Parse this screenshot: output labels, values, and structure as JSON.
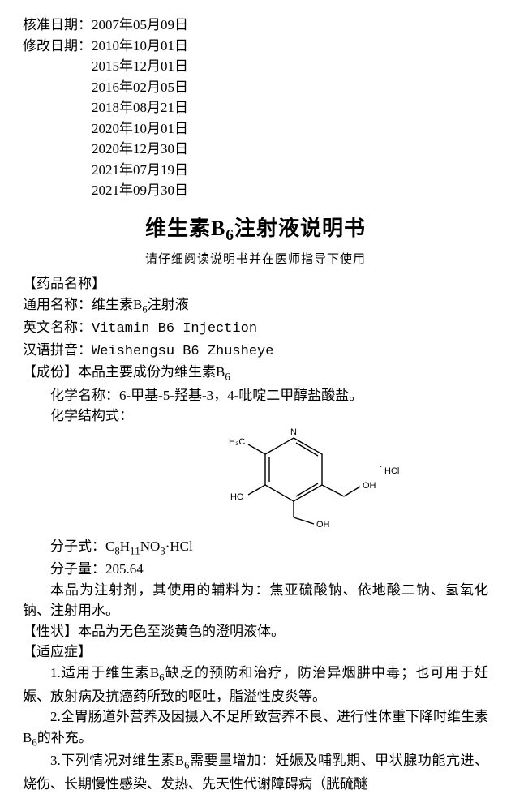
{
  "dates": {
    "approval_label": "核准日期：",
    "approval_value": "2007年05月09日",
    "revision_label": "修改日期：",
    "revisions": [
      "2010年10月01日",
      "2015年12月01日",
      "2016年02月05日",
      "2018年08月21日",
      "2020年10月01日",
      "2020年12月30日",
      "2021年07月19日",
      "2021年09月30日"
    ]
  },
  "title": {
    "main_pre": "维生素B",
    "main_sub": "6",
    "main_post": "注射液说明书",
    "subtitle": "请仔细阅读说明书并在医师指导下使用"
  },
  "sections": {
    "drug_name_header": "【药品名称】",
    "generic_label": "通用名称：",
    "generic_pre": "维生素B",
    "generic_sub": "6",
    "generic_post": "注射液",
    "english_label": "英文名称：",
    "english_value": "Vitamin B6 Injection",
    "pinyin_label": "汉语拼音：",
    "pinyin_value": "Weishengsu B6 Zhusheye",
    "ingredient_header": "【成份】",
    "ingredient_pre": "本品主要成份为维生素B",
    "ingredient_sub": "6",
    "chem_name_label": "化学名称：",
    "chem_name_value": "6-甲基-5-羟基-3，4-吡啶二甲醇盐酸盐。",
    "structure_label": "化学结构式：",
    "formula_label": "分子式：",
    "formula_value": "C8H11NO3·HCl",
    "weight_label": "分子量：",
    "weight_value": "205.64",
    "excipients": "本品为注射剂，其使用的辅料为：焦亚硫酸钠、依地酸二钠、氢氧化钠、注射用水。",
    "properties_header": "【性状】",
    "properties_value": "本品为无色至淡黄色的澄明液体。",
    "indications_header": "【适应症】",
    "indication1_pre": "1.适用于维生素B",
    "indication1_sub": "6",
    "indication1_post": "缺乏的预防和治疗，防治异烟肼中毒；也可用于妊娠、放射病及抗癌药所致的呕吐，脂溢性皮炎等。",
    "indication2_pre": "2.全胃肠道外营养及因摄入不足所致营养不良、进行性体重下降时维生素B",
    "indication2_sub": "6",
    "indication2_post": "的补充。",
    "indication3_pre": "3.下列情况对维生素B",
    "indication3_sub": "6",
    "indication3_post": "需要量增加：妊娠及哺乳期、甲状腺功能亢进、烧伤、长期慢性感染、发热、先天性代谢障碍病（胱硫醚"
  },
  "structure": {
    "labels": {
      "ch3": "H₃C",
      "ho": "HO",
      "oh1": "OH",
      "oh2": "OH",
      "n": "N",
      "hcl": "HCl"
    },
    "style": {
      "stroke": "#000000",
      "stroke_width": 1.4,
      "font_size": 11
    }
  }
}
